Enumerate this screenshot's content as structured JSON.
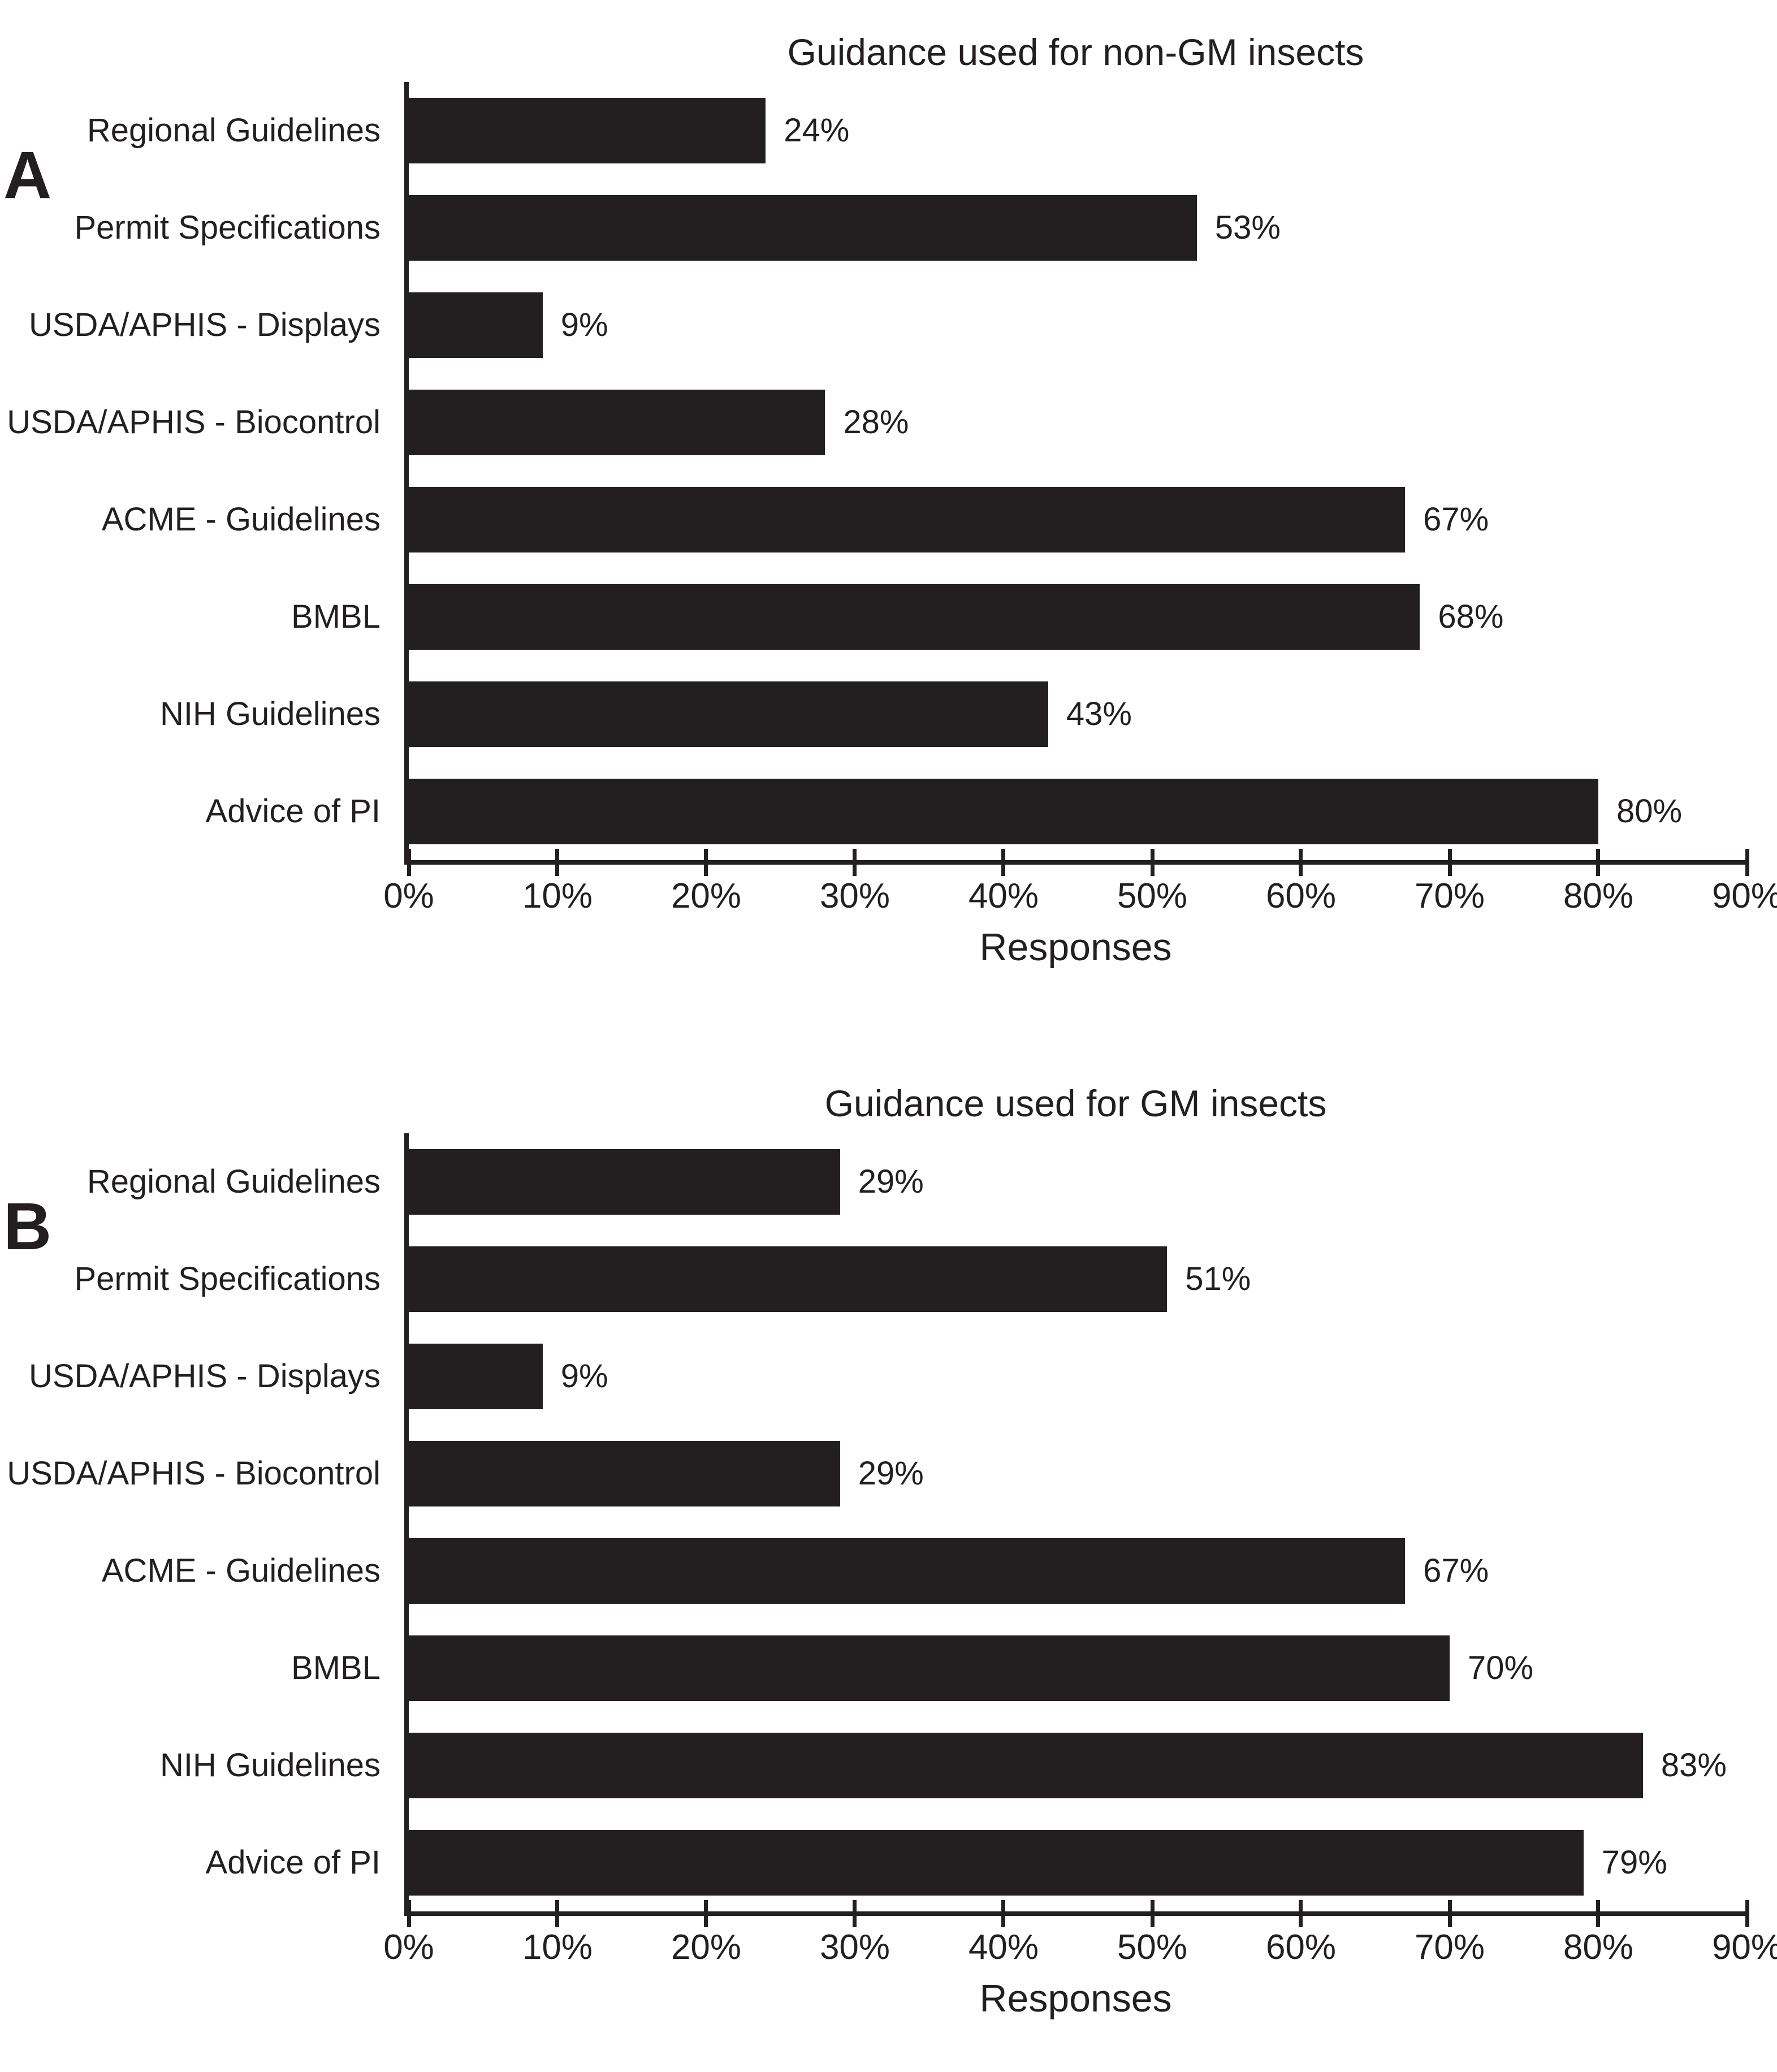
{
  "figure": {
    "background_color": "#ffffff",
    "bar_color": "#231f20",
    "text_color": "#231f20"
  },
  "chart_data": [
    {
      "type": "bar",
      "orientation": "horizontal",
      "panel": "A",
      "title": "Guidance used for non-GM insects",
      "categories": [
        "Regional Guidelines",
        "Permit Specifications",
        "USDA/APHIS - Displays",
        "USDA/APHIS - Biocontrol",
        "ACME - Guidelines",
        "BMBL",
        "NIH Guidelines",
        "Advice of PI"
      ],
      "values": [
        24,
        53,
        9,
        28,
        67,
        68,
        43,
        80
      ],
      "value_labels": [
        "24%",
        "53%",
        "9%",
        "28%",
        "67%",
        "68%",
        "43%",
        "80%"
      ],
      "xlabel": "Responses",
      "xlim": [
        0,
        90
      ],
      "xticks": [
        "0%",
        "10%",
        "20%",
        "30%",
        "40%",
        "50%",
        "60%",
        "70%",
        "80%",
        "90%"
      ],
      "grid": false,
      "legend": null
    },
    {
      "type": "bar",
      "orientation": "horizontal",
      "panel": "B",
      "title": "Guidance used for GM insects",
      "categories": [
        "Regional Guidelines",
        "Permit Specifications",
        "USDA/APHIS - Displays",
        "USDA/APHIS - Biocontrol",
        "ACME - Guidelines",
        "BMBL",
        "NIH Guidelines",
        "Advice of PI"
      ],
      "values": [
        29,
        51,
        9,
        29,
        67,
        70,
        83,
        79
      ],
      "value_labels": [
        "29%",
        "51%",
        "9%",
        "29%",
        "67%",
        "70%",
        "83%",
        "79%"
      ],
      "xlabel": "Responses",
      "xlim": [
        0,
        90
      ],
      "xticks": [
        "0%",
        "10%",
        "20%",
        "30%",
        "40%",
        "50%",
        "60%",
        "70%",
        "80%",
        "90%"
      ],
      "grid": false,
      "legend": null
    }
  ]
}
